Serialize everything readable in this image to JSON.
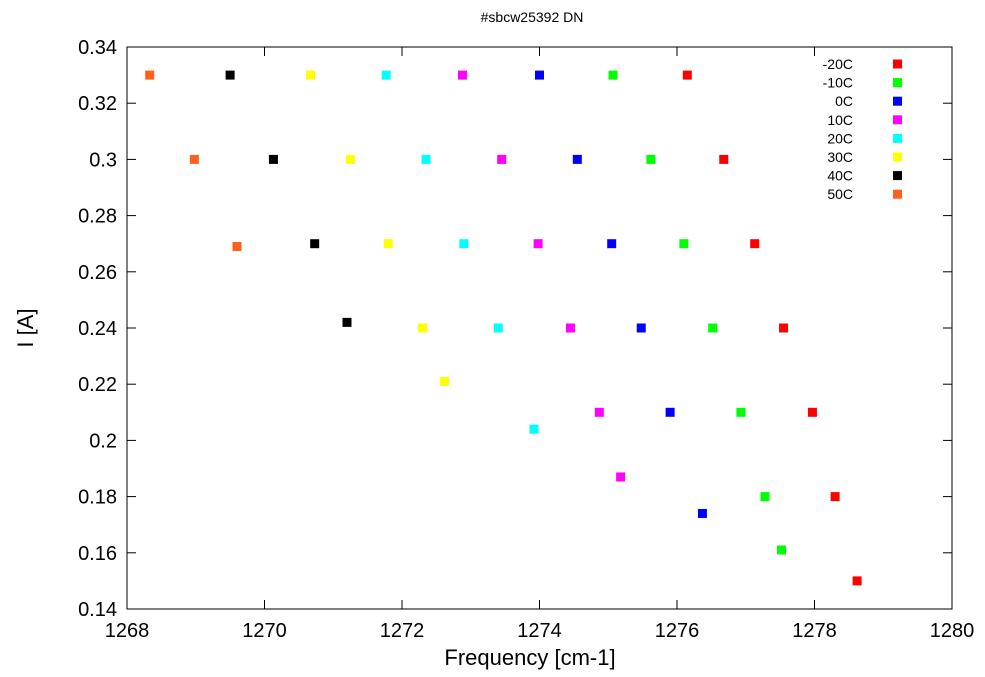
{
  "chart_data": {
    "type": "scatter",
    "title": "#sbcw25392 DN",
    "xlabel": "Frequency [cm-1]",
    "ylabel": "I [A]",
    "xlim": [
      1268,
      1280
    ],
    "ylim": [
      0.14,
      0.34
    ],
    "xticks": [
      "1268",
      "1270",
      "1272",
      "1274",
      "1276",
      "1278",
      "1280"
    ],
    "yticks": [
      "0.14",
      "0.16",
      "0.18",
      "0.2",
      "0.22",
      "0.24",
      "0.26",
      "0.28",
      "0.3",
      "0.32",
      "0.34"
    ],
    "xtick_values": [
      1268,
      1270,
      1272,
      1274,
      1276,
      1278,
      1280
    ],
    "ytick_values": [
      0.14,
      0.16,
      0.18,
      0.2,
      0.22,
      0.24,
      0.26,
      0.28,
      0.3,
      0.32,
      0.34
    ],
    "grid": false,
    "legend_position": "top-right",
    "series": [
      {
        "name": "-20C",
        "color": "#ff0000",
        "points": [
          [
            1276.15,
            0.33
          ],
          [
            1276.68,
            0.3
          ],
          [
            1277.13,
            0.27
          ],
          [
            1277.55,
            0.24
          ],
          [
            1277.97,
            0.21
          ],
          [
            1278.3,
            0.18
          ],
          [
            1278.62,
            0.15
          ]
        ]
      },
      {
        "name": "-10C",
        "color": "#00ff00",
        "points": [
          [
            1275.07,
            0.33
          ],
          [
            1275.62,
            0.3
          ],
          [
            1276.1,
            0.27
          ],
          [
            1276.52,
            0.24
          ],
          [
            1276.93,
            0.21
          ],
          [
            1277.28,
            0.18
          ],
          [
            1277.52,
            0.161
          ]
        ]
      },
      {
        "name": "0C",
        "color": "#0000ff",
        "points": [
          [
            1274.0,
            0.33
          ],
          [
            1274.55,
            0.3
          ],
          [
            1275.05,
            0.27
          ],
          [
            1275.48,
            0.24
          ],
          [
            1275.9,
            0.21
          ],
          [
            1276.37,
            0.174
          ]
        ]
      },
      {
        "name": "10C",
        "color": "#ff00ff",
        "points": [
          [
            1272.88,
            0.33
          ],
          [
            1273.45,
            0.3
          ],
          [
            1273.98,
            0.27
          ],
          [
            1274.45,
            0.24
          ],
          [
            1274.87,
            0.21
          ],
          [
            1275.18,
            0.187
          ]
        ]
      },
      {
        "name": "20C",
        "color": "#00ffff",
        "points": [
          [
            1271.77,
            0.33
          ],
          [
            1272.35,
            0.3
          ],
          [
            1272.9,
            0.27
          ],
          [
            1273.4,
            0.24
          ],
          [
            1273.92,
            0.204
          ]
        ]
      },
      {
        "name": "30C",
        "color": "#ffff00",
        "points": [
          [
            1270.67,
            0.33
          ],
          [
            1271.25,
            0.3
          ],
          [
            1271.8,
            0.27
          ],
          [
            1272.3,
            0.24
          ],
          [
            1272.62,
            0.221
          ]
        ]
      },
      {
        "name": "40C",
        "color": "#000000",
        "points": [
          [
            1269.5,
            0.33
          ],
          [
            1270.13,
            0.3
          ],
          [
            1270.73,
            0.27
          ],
          [
            1271.2,
            0.242
          ]
        ]
      },
      {
        "name": "50C",
        "color": "#ff6020",
        "points": [
          [
            1268.33,
            0.33
          ],
          [
            1268.98,
            0.3
          ],
          [
            1269.6,
            0.269
          ]
        ]
      }
    ]
  }
}
